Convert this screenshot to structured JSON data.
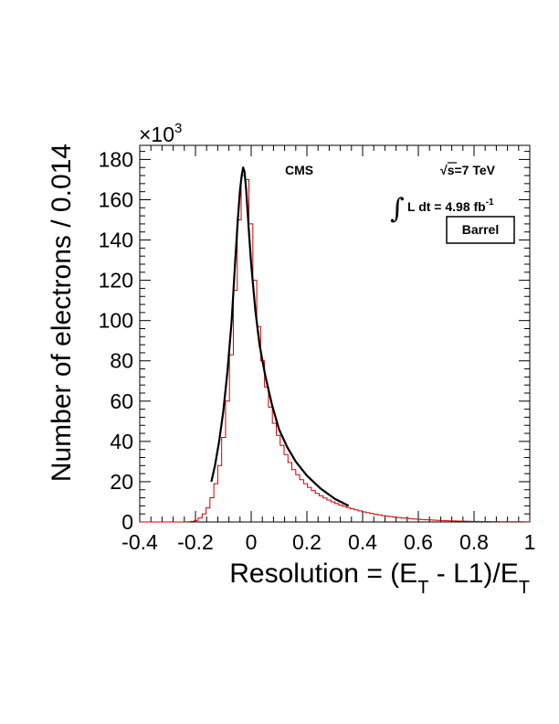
{
  "chart_data": {
    "type": "histogram",
    "title": "",
    "xlabel": {
      "main": "Resolution = (E",
      "sub1": "T",
      "mid": " - L1)/E",
      "sub2": "T"
    },
    "ylabel": "Number of electrons / 0.014",
    "y_multiplier": {
      "base": "×10",
      "exp": "3"
    },
    "xlim": [
      -0.4,
      1.0
    ],
    "ylim": [
      0,
      187
    ],
    "x_ticks": [
      -0.4,
      -0.2,
      0,
      0.2,
      0.4,
      0.6,
      0.8,
      1
    ],
    "x_tick_labels": [
      "-0.4",
      "-0.2",
      "0",
      "0.2",
      "0.4",
      "0.6",
      "0.8",
      "1"
    ],
    "y_ticks": [
      0,
      20,
      40,
      60,
      80,
      100,
      120,
      140,
      160,
      180
    ],
    "y_tick_labels": [
      "0",
      "20",
      "40",
      "60",
      "80",
      "100",
      "120",
      "140",
      "160",
      "180"
    ],
    "grid": false,
    "bin_width": 0.014,
    "series": [
      {
        "style": "step",
        "color": "#cc0000",
        "bin_lows": [
          -0.4,
          -0.386,
          -0.372,
          -0.358,
          -0.344,
          -0.33,
          -0.316,
          -0.302,
          -0.288,
          -0.274,
          -0.26,
          -0.246,
          -0.232,
          -0.218,
          -0.204,
          -0.19,
          -0.176,
          -0.162,
          -0.148,
          -0.134,
          -0.12,
          -0.106,
          -0.092,
          -0.078,
          -0.064,
          -0.05,
          -0.036,
          -0.022,
          -0.008,
          0.006,
          0.02,
          0.034,
          0.048,
          0.062,
          0.076,
          0.09,
          0.104,
          0.118,
          0.132,
          0.146,
          0.16,
          0.174,
          0.188,
          0.202,
          0.216,
          0.23,
          0.244,
          0.258,
          0.272,
          0.286,
          0.3,
          0.314,
          0.328,
          0.342,
          0.356,
          0.37,
          0.384,
          0.398,
          0.412,
          0.426,
          0.44,
          0.454,
          0.468,
          0.482,
          0.496,
          0.51,
          0.524,
          0.538,
          0.552,
          0.566,
          0.58,
          0.594,
          0.608,
          0.622,
          0.636,
          0.65,
          0.664,
          0.678,
          0.692,
          0.706,
          0.72,
          0.734,
          0.748,
          0.762,
          0.776,
          0.79,
          0.804,
          0.818,
          0.832,
          0.846,
          0.86,
          0.874,
          0.888,
          0.902,
          0.916,
          0.93,
          0.944,
          0.958,
          0.972,
          0.986
        ],
        "values": [
          0,
          0,
          0,
          0,
          0,
          0,
          0,
          0,
          0,
          0,
          0,
          0,
          0.1,
          0.3,
          0.8,
          2,
          4,
          7,
          12,
          19,
          28,
          42,
          60,
          83,
          115,
          150,
          172,
          170,
          148,
          120,
          97,
          80,
          67,
          57,
          49,
          43,
          38,
          33.5,
          29.5,
          26,
          23.5,
          21,
          19,
          17.2,
          15.6,
          14.2,
          13,
          11.9,
          10.9,
          10,
          9.2,
          8.4,
          7.7,
          7.1,
          6.5,
          6,
          5.5,
          5,
          4.6,
          4.2,
          3.8,
          3.5,
          3.2,
          2.9,
          2.65,
          2.4,
          2.2,
          2,
          1.8,
          1.65,
          1.5,
          1.35,
          1.2,
          1.1,
          1,
          0.9,
          0.8,
          0.72,
          0.65,
          0.58,
          0.52,
          0.47,
          0.42,
          0.38,
          0.34,
          0.3,
          0.27,
          0.24,
          0.22,
          0.2,
          0.18,
          0.16,
          0.14,
          0.13,
          0.12,
          0.11,
          0.1,
          0.09,
          0.08,
          0.07
        ]
      },
      {
        "style": "line",
        "color": "#000000",
        "x": [
          -0.143,
          -0.13,
          -0.115,
          -0.1,
          -0.085,
          -0.07,
          -0.058,
          -0.048,
          -0.04,
          -0.034,
          -0.029,
          -0.024,
          -0.018,
          -0.01,
          0,
          0.015,
          0.03,
          0.05,
          0.075,
          0.1,
          0.13,
          0.16,
          0.2,
          0.25,
          0.3,
          0.35
        ],
        "y": [
          20,
          28,
          40,
          55,
          75,
          100,
          128,
          150,
          165,
          172,
          176,
          174,
          165,
          148,
          128,
          105,
          88,
          73,
          58,
          46,
          37,
          30,
          23,
          16.5,
          11.5,
          8
        ]
      }
    ],
    "annotations": {
      "cms": "CMS",
      "sqrt_symbol": "√",
      "energy": "s=7 TeV",
      "integral_symbol": "∫",
      "lumi": "L dt = 4.98 fb",
      "lumi_exp": "-1",
      "region": "Barrel"
    }
  }
}
